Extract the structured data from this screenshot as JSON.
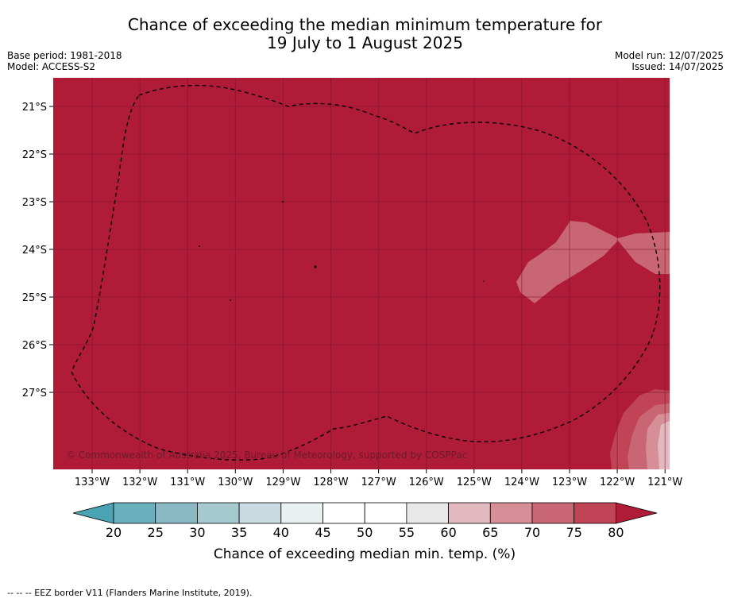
{
  "title": {
    "line1": "Chance of exceeding the median minimum temperature for",
    "line2": "19 July to 1 August 2025"
  },
  "meta": {
    "base_period": "Base period: 1981-2018",
    "model": "Model: ACCESS-S2",
    "model_run": "Model run: 12/07/2025",
    "issued": "Issued: 14/07/2025"
  },
  "map": {
    "lat_labels": [
      "21°S",
      "22°S",
      "23°S",
      "24°S",
      "25°S",
      "26°S",
      "27°S"
    ],
    "lon_labels": [
      "133°W",
      "132°W",
      "131°W",
      "130°W",
      "129°W",
      "128°W",
      "127°W",
      "126°W",
      "125°W",
      "124°W",
      "123°W",
      "122°W",
      "121°W"
    ],
    "copyright": "© Commonwealth of Australia 2025, Bureau of Meteorology, supported by COSPPac",
    "colors": {
      "c80": "#b01c38",
      "c75": "#c04456",
      "c70": "#c96674",
      "c65": "#d68e97",
      "c60": "#e2b9be",
      "c55": "#e8e8e8",
      "c50": "#ffffff",
      "c45": "#ffffff",
      "c40": "#e9f0f2",
      "c35": "#c9dbe0",
      "c30": "#a6c8cf",
      "c25": "#8ab9c4",
      "c20": "#6aafbd",
      "low": "#4aa3b2",
      "grid": "#7a1024"
    }
  },
  "colorbar": {
    "ticks": [
      "20",
      "25",
      "30",
      "35",
      "40",
      "45",
      "50",
      "55",
      "60",
      "65",
      "70",
      "75",
      "80"
    ],
    "label": "Chance of exceeding median min. temp. (%)"
  },
  "footnote": "-- -- -- EEZ border V11 (Flanders Marine Institute, 2019)."
}
